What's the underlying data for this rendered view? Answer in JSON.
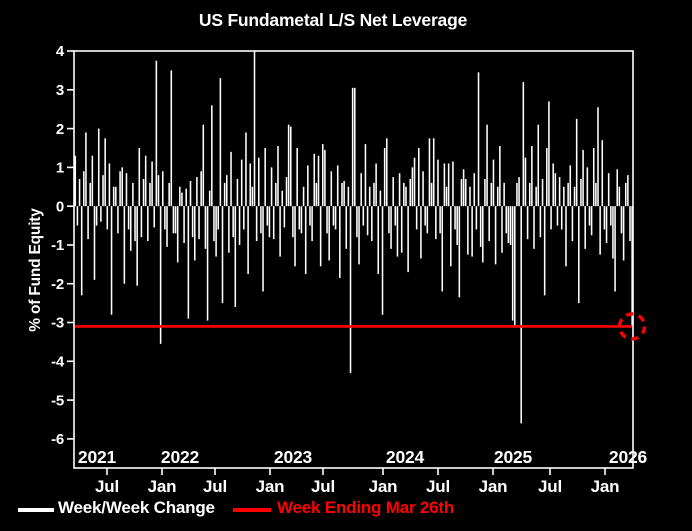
{
  "chart_data": {
    "type": "bar",
    "title": "US Fundametal L/S Net Leverage",
    "ylabel": "% of Fund Equity",
    "series_name": "Week/Week Change",
    "frequency": "weekly",
    "background": "#000000",
    "bar_color": "#ffffff",
    "text_color": "#ffffff",
    "ylim": [
      -6.75,
      4.0
    ],
    "y_ticks": [
      4,
      3,
      2,
      1,
      0,
      -1,
      -2,
      -3,
      -4,
      -5,
      -6
    ],
    "x_year_labels": [
      "2021",
      "2022",
      "2023",
      "2024",
      "2025",
      "2026"
    ],
    "x_month_tick_labels": [
      "Jul",
      "Jan",
      "Jul",
      "Jan",
      "Jul",
      "Jan",
      "Jul",
      "Jan",
      "Jul",
      "Jan"
    ],
    "grid": false,
    "values": [
      1.3,
      -0.5,
      0.7,
      -2.3,
      0.9,
      1.9,
      -0.85,
      0.6,
      1.3,
      -1.9,
      -0.5,
      2.0,
      -0.4,
      0.8,
      1.75,
      -0.6,
      1.1,
      -2.8,
      0.5,
      0.5,
      -0.7,
      0.9,
      1.0,
      -2.0,
      0.85,
      -0.6,
      -1.15,
      0.6,
      -0.9,
      -2.05,
      1.5,
      -0.8,
      0.7,
      1.3,
      -0.9,
      0.6,
      1.15,
      -0.55,
      3.75,
      0.8,
      -3.55,
      0.9,
      -0.6,
      -1.05,
      0.6,
      3.5,
      -0.7,
      -0.7,
      -1.45,
      0.5,
      0.35,
      -0.95,
      0.45,
      -2.9,
      0.65,
      -0.8,
      -1.4,
      0.75,
      -0.85,
      0.9,
      2.1,
      -1.1,
      -2.95,
      0.4,
      2.6,
      -0.9,
      -1.3,
      -0.6,
      3.3,
      -2.5,
      0.6,
      0.8,
      -1.2,
      1.4,
      -0.8,
      -2.6,
      0.7,
      -1.0,
      1.2,
      -0.6,
      1.9,
      -1.75,
      1.1,
      0.5,
      4.0,
      -0.9,
      1.25,
      -0.7,
      -2.2,
      1.5,
      -0.5,
      -0.8,
      1.0,
      -0.85,
      0.6,
      1.55,
      -1.3,
      0.4,
      -0.55,
      0.75,
      2.1,
      2.05,
      -0.8,
      -1.55,
      1.5,
      -0.6,
      -0.7,
      0.5,
      -1.75,
      1.05,
      -0.5,
      -0.9,
      1.35,
      0.6,
      1.3,
      -1.55,
      1.6,
      1.45,
      -0.7,
      -1.4,
      0.9,
      -0.5,
      -0.6,
      1.05,
      -1.85,
      0.6,
      0.65,
      -1.1,
      0.5,
      -4.3,
      3.05,
      3.05,
      -0.8,
      -1.5,
      0.85,
      -0.5,
      1.6,
      -0.75,
      0.5,
      -0.9,
      0.6,
      1.1,
      -1.75,
      0.4,
      -2.8,
      1.5,
      1.75,
      -0.7,
      -1.1,
      0.75,
      -0.5,
      -1.3,
      0.85,
      -1.2,
      0.6,
      0.5,
      -1.7,
      0.7,
      1.0,
      1.25,
      -0.6,
      1.5,
      -1.35,
      0.9,
      -0.5,
      -0.7,
      1.75,
      0.6,
      1.75,
      -0.85,
      1.2,
      -0.7,
      -2.2,
      1.1,
      0.5,
      1.1,
      -1.55,
      1.15,
      -0.6,
      -1.0,
      -2.35,
      0.7,
      0.95,
      0.7,
      -1.25,
      0.5,
      -1.3,
      0.85,
      -0.6,
      3.45,
      -1.05,
      -1.45,
      0.7,
      2.1,
      -0.9,
      0.6,
      1.2,
      -1.5,
      0.5,
      1.55,
      -1.2,
      0.6,
      -0.7,
      -0.95,
      -1.0,
      -2.95,
      -3.1,
      0.6,
      0.75,
      -5.6,
      3.2,
      1.25,
      -0.85,
      0.6,
      1.55,
      -1.1,
      0.5,
      2.1,
      -0.8,
      0.7,
      -2.3,
      1.5,
      2.7,
      -0.6,
      1.1,
      0.85,
      -0.5,
      0.75,
      -0.6,
      0.5,
      -1.55,
      0.6,
      1.05,
      -0.9,
      0.5,
      2.25,
      -2.5,
      0.7,
      1.45,
      -1.1,
      1.0,
      -0.5,
      -0.75,
      1.5,
      0.6,
      2.55,
      -1.25,
      1.7,
      -0.6,
      -0.95,
      0.85,
      -0.5,
      -1.35,
      -2.2,
      0.95,
      0.5,
      -0.7,
      -1.4,
      0.6,
      0.8,
      -0.9,
      -3.1
    ],
    "reference_line": {
      "label": "Week Ending Mar 26th",
      "value": -3.1,
      "color": "#ff0000"
    },
    "highlight_marker": {
      "type": "dashed-circle",
      "color": "#ff0000",
      "on": "last-bar",
      "value": -3.1
    }
  }
}
